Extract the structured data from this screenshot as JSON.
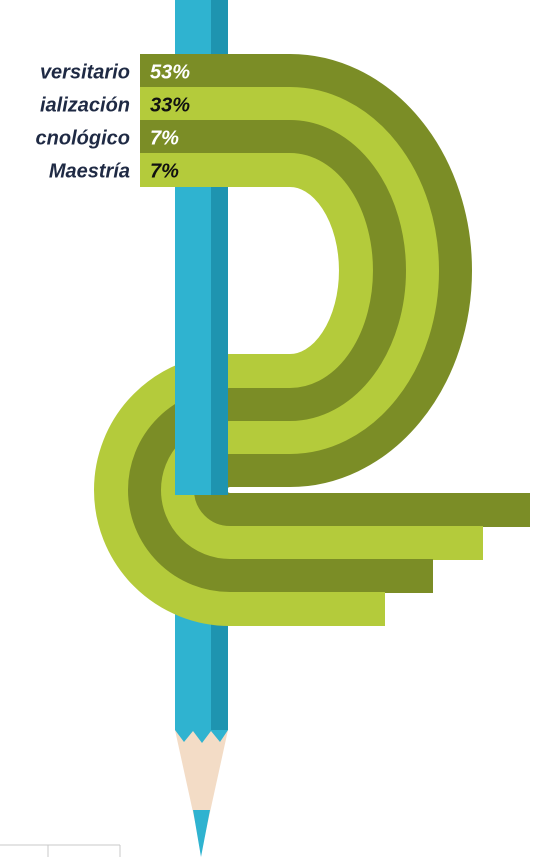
{
  "items": [
    {
      "label": "versitario",
      "value": "53%"
    },
    {
      "label": "ialización",
      "value": "33%"
    },
    {
      "label": "cnológico",
      "value": "7%"
    },
    {
      "label": "Maestría",
      "value": "7%"
    }
  ]
}
